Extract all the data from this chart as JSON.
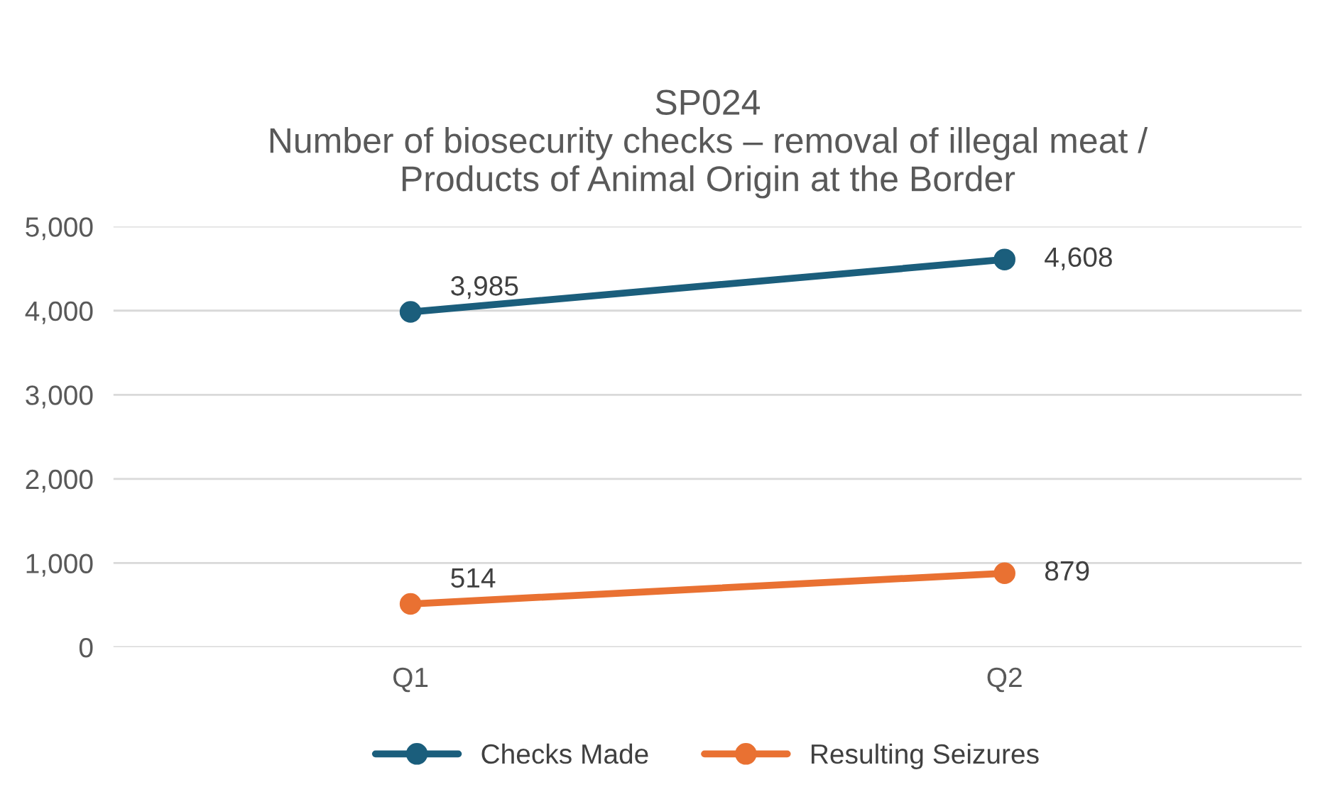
{
  "chart_data": {
    "type": "line",
    "title": "SP024\nNumber of biosecurity checks – removal of illegal meat /\nProducts of Animal Origin at the Border",
    "categories": [
      "Q1",
      "Q2"
    ],
    "series": [
      {
        "name": "Checks Made",
        "color": "#1b5e7c",
        "values": [
          3985,
          4608
        ],
        "value_labels": [
          "3,985",
          "4,608"
        ]
      },
      {
        "name": "Resulting Seizures",
        "color": "#e97132",
        "values": [
          514,
          879
        ],
        "value_labels": [
          "514",
          "879"
        ]
      }
    ],
    "ylim": [
      0,
      5000
    ],
    "yticks": [
      {
        "value": 0,
        "label": "0"
      },
      {
        "value": 1000,
        "label": "1,000"
      },
      {
        "value": 2000,
        "label": "2,000"
      },
      {
        "value": 3000,
        "label": "3,000"
      },
      {
        "value": 4000,
        "label": "4,000"
      },
      {
        "value": 5000,
        "label": "5,000"
      }
    ],
    "grid": "y",
    "legend": "bottom",
    "marker": "circle",
    "line_style": "solid"
  }
}
